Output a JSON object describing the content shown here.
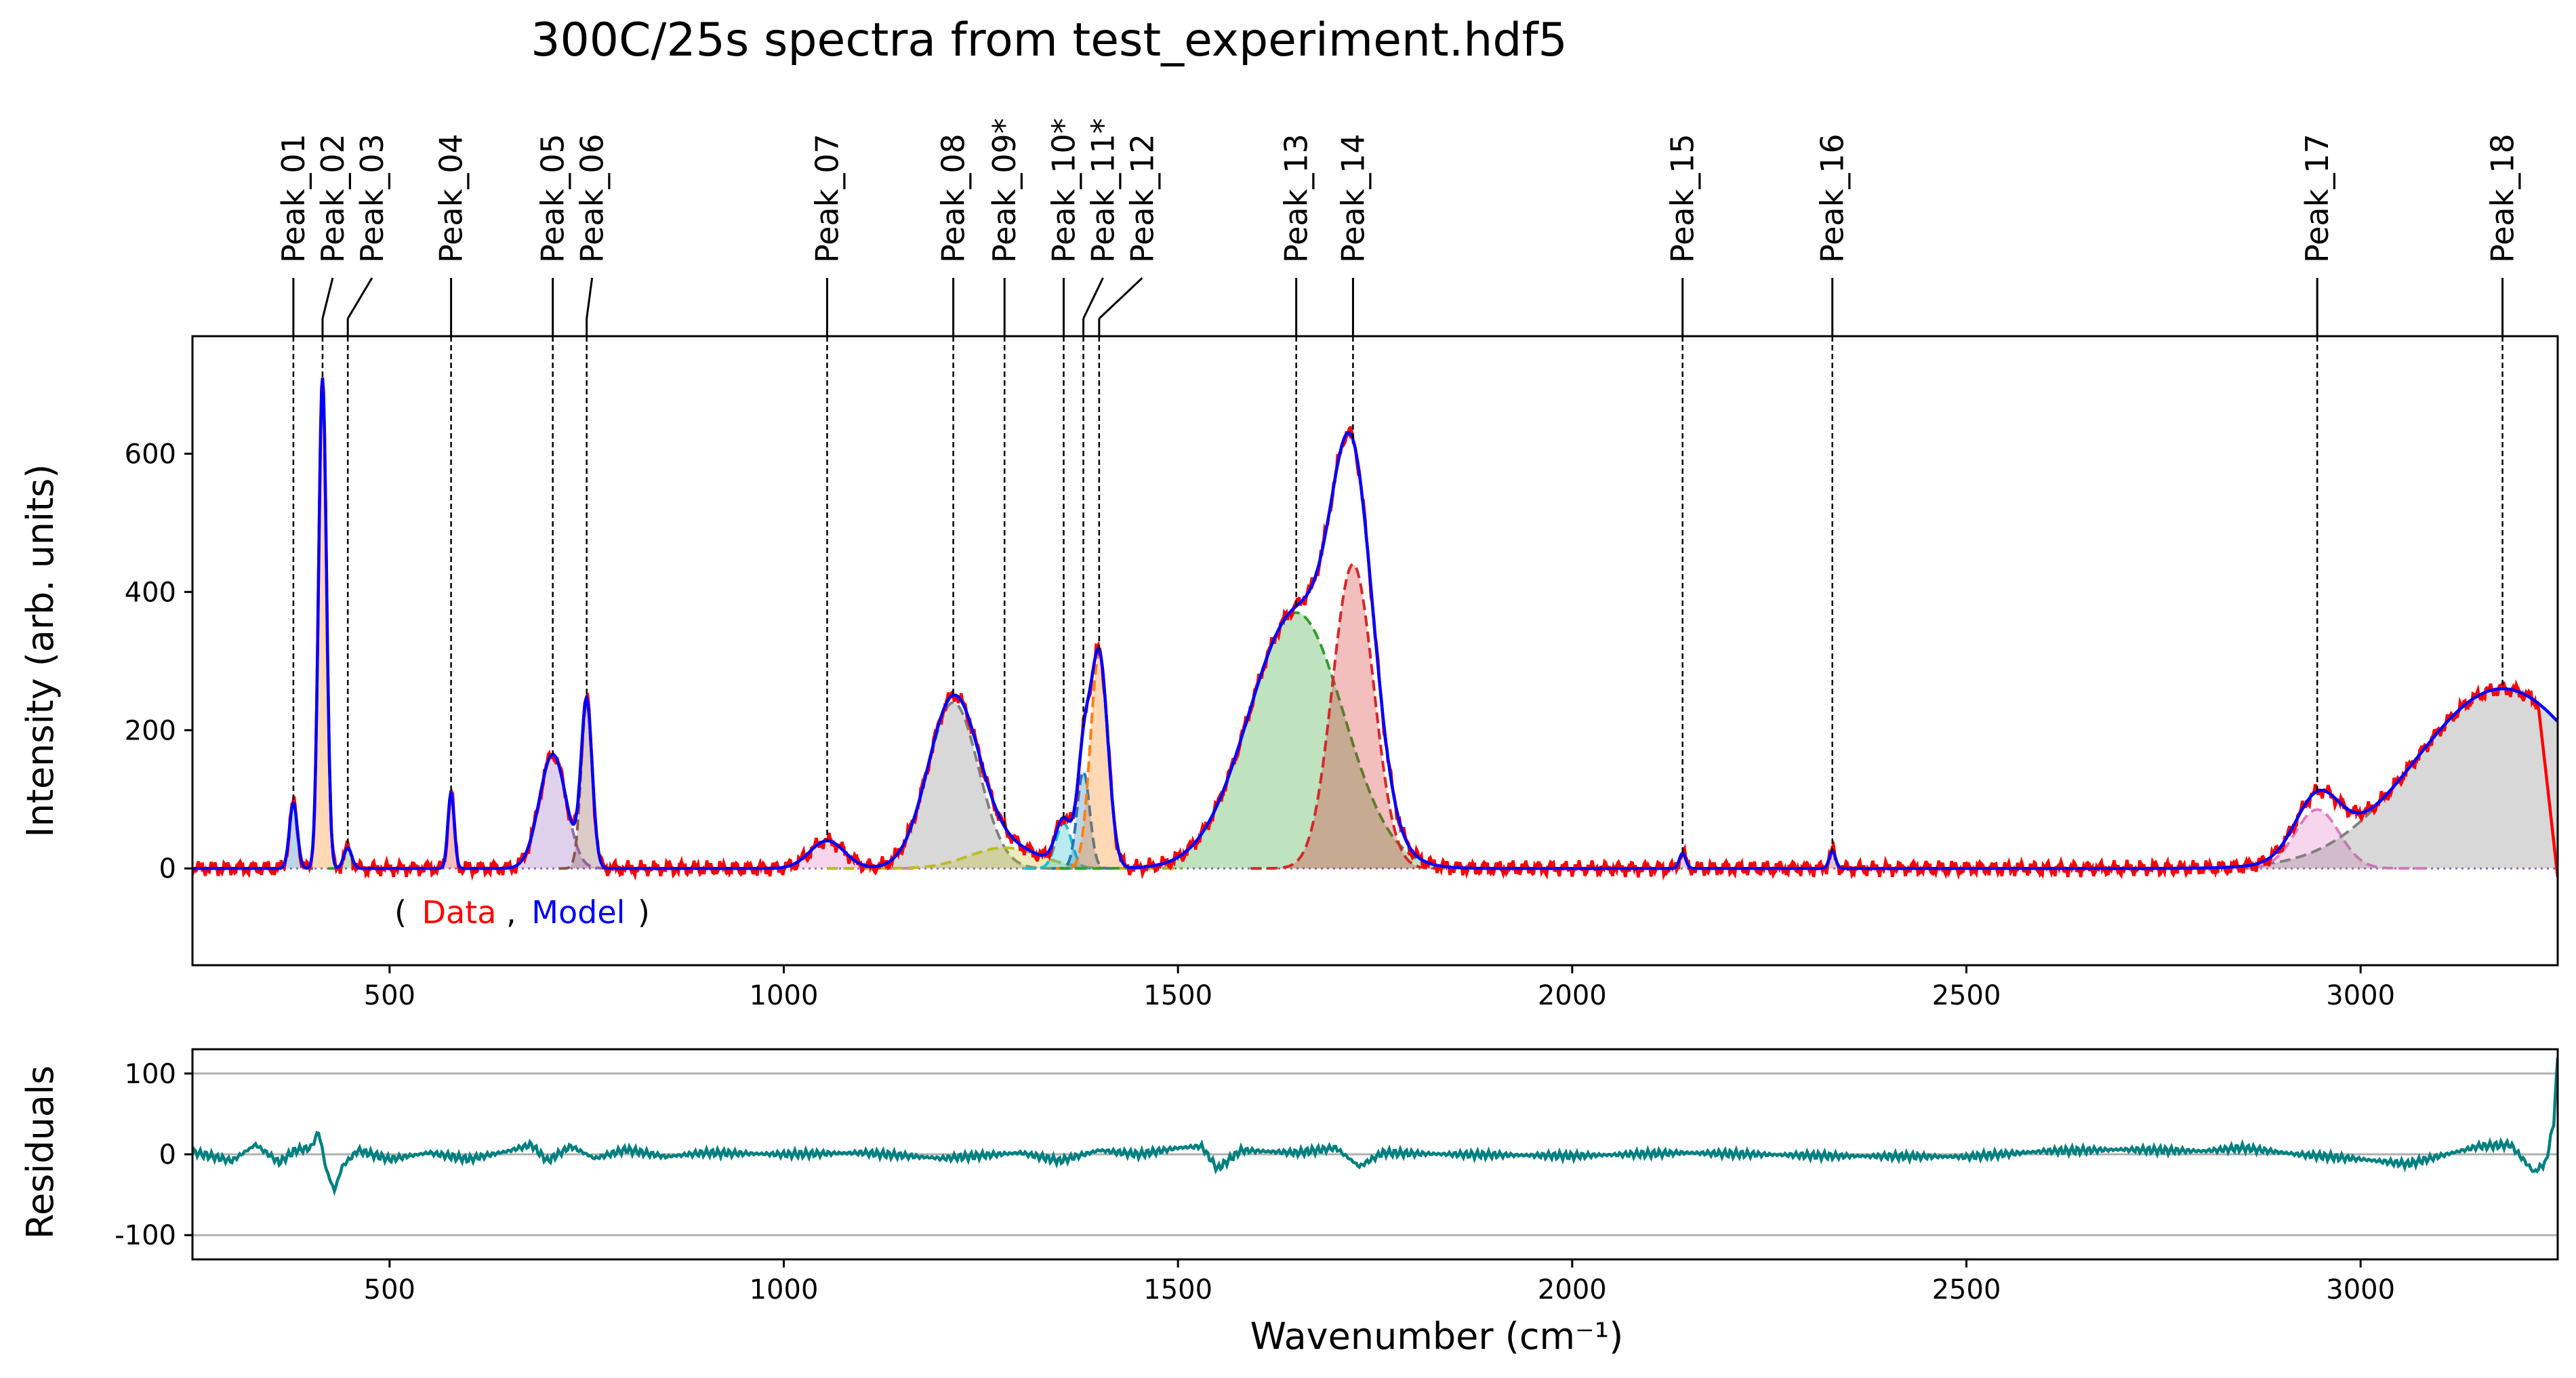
{
  "chart_data": [
    {
      "type": "line",
      "title": "300C/25s spectra from test_experiment.hdf5",
      "ylabel": "Intensity (arb. units)",
      "xlim": [
        250,
        3250
      ],
      "ylim": [
        -140,
        770
      ],
      "xticks": [
        500,
        1000,
        1500,
        2000,
        2500,
        3000
      ],
      "yticks": [
        0,
        200,
        400,
        600
      ],
      "legend": {
        "placement": "bottom-left",
        "open": "(",
        "data_label": "Data",
        "sep": ",",
        "model_label": "Model",
        "close": ")"
      },
      "series_colors": {
        "data": "#ff0000",
        "model": "#0000ff"
      },
      "peaks": [
        {
          "label": "Peak_01",
          "x": 378,
          "amp": 95,
          "width": 5,
          "color": "#1f77b4"
        },
        {
          "label": "Peak_02",
          "x": 415,
          "amp": 710,
          "width": 5,
          "color": "#ff7f0e"
        },
        {
          "label": "Peak_03",
          "x": 447,
          "amp": 30,
          "width": 5,
          "color": "#2ca02c"
        },
        {
          "label": "Peak_04",
          "x": 578,
          "amp": 110,
          "width": 4,
          "color": "#d62728"
        },
        {
          "label": "Peak_05",
          "x": 707,
          "amp": 165,
          "width": 17,
          "color": "#9467bd"
        },
        {
          "label": "Peak_06",
          "x": 750,
          "amp": 240,
          "width": 7,
          "color": "#8c564b"
        },
        {
          "label": "Peak_07",
          "x": 1055,
          "amp": 40,
          "width": 22,
          "color": "#e377c2"
        },
        {
          "label": "Peak_08",
          "x": 1215,
          "amp": 240,
          "width": 32,
          "color": "#7f7f7f"
        },
        {
          "label": "Peak_09*",
          "x": 1280,
          "amp": 30,
          "width": 45,
          "color": "#bcbd22"
        },
        {
          "label": "Peak_10*",
          "x": 1355,
          "amp": 65,
          "width": 10,
          "color": "#17becf"
        },
        {
          "label": "Peak_11*",
          "x": 1380,
          "amp": 140,
          "width": 8,
          "color": "#1f77b4"
        },
        {
          "label": "Peak_12",
          "x": 1400,
          "amp": 310,
          "width": 11,
          "color": "#ff7f0e"
        },
        {
          "label": "Peak_13",
          "x": 1650,
          "amp": 370,
          "width": 60,
          "color": "#2ca02c"
        },
        {
          "label": "Peak_14",
          "x": 1722,
          "amp": 440,
          "width": 26,
          "color": "#d62728"
        },
        {
          "label": "Peak_15",
          "x": 2140,
          "amp": 22,
          "width": 4,
          "color": "#9467bd"
        },
        {
          "label": "Peak_16",
          "x": 2330,
          "amp": 25,
          "width": 4,
          "color": "#8c564b"
        },
        {
          "label": "Peak_17",
          "x": 2945,
          "amp": 85,
          "width": 28,
          "color": "#e377c2"
        },
        {
          "label": "Peak_18",
          "x": 3180,
          "amp": 260,
          "width": 110,
          "color": "#7f7f7f"
        }
      ]
    },
    {
      "type": "line",
      "ylabel": "Residuals",
      "xlabel": "Wavenumber (cm⁻¹)",
      "xlim": [
        250,
        3250
      ],
      "ylim": [
        -130,
        130
      ],
      "xticks": [
        500,
        1000,
        1500,
        2000,
        2500,
        3000
      ],
      "yticks": [
        -100,
        0,
        100
      ],
      "grid": true,
      "color": "#008080",
      "residuals": [
        [
          250,
          3
        ],
        [
          300,
          -8
        ],
        [
          330,
          12
        ],
        [
          360,
          -10
        ],
        [
          380,
          5
        ],
        [
          400,
          8
        ],
        [
          410,
          28
        ],
        [
          420,
          -20
        ],
        [
          430,
          -45
        ],
        [
          440,
          -15
        ],
        [
          460,
          5
        ],
        [
          500,
          -6
        ],
        [
          550,
          2
        ],
        [
          600,
          -6
        ],
        [
          650,
          4
        ],
        [
          680,
          12
        ],
        [
          700,
          -8
        ],
        [
          730,
          10
        ],
        [
          760,
          -5
        ],
        [
          800,
          6
        ],
        [
          850,
          -3
        ],
        [
          900,
          2
        ],
        [
          1000,
          0
        ],
        [
          1100,
          2
        ],
        [
          1200,
          -5
        ],
        [
          1300,
          2
        ],
        [
          1350,
          -8
        ],
        [
          1400,
          5
        ],
        [
          1450,
          0
        ],
        [
          1500,
          8
        ],
        [
          1530,
          10
        ],
        [
          1550,
          -18
        ],
        [
          1580,
          5
        ],
        [
          1650,
          2
        ],
        [
          1700,
          8
        ],
        [
          1730,
          -15
        ],
        [
          1760,
          2
        ],
        [
          1850,
          0
        ],
        [
          2000,
          -2
        ],
        [
          2140,
          2
        ],
        [
          2330,
          -2
        ],
        [
          2500,
          -3
        ],
        [
          2600,
          4
        ],
        [
          2700,
          6
        ],
        [
          2800,
          4
        ],
        [
          2850,
          8
        ],
        [
          2920,
          0
        ],
        [
          3000,
          -6
        ],
        [
          3060,
          -12
        ],
        [
          3150,
          10
        ],
        [
          3190,
          12
        ],
        [
          3220,
          -22
        ],
        [
          3235,
          -10
        ],
        [
          3245,
          40
        ],
        [
          3250,
          120
        ]
      ]
    }
  ]
}
